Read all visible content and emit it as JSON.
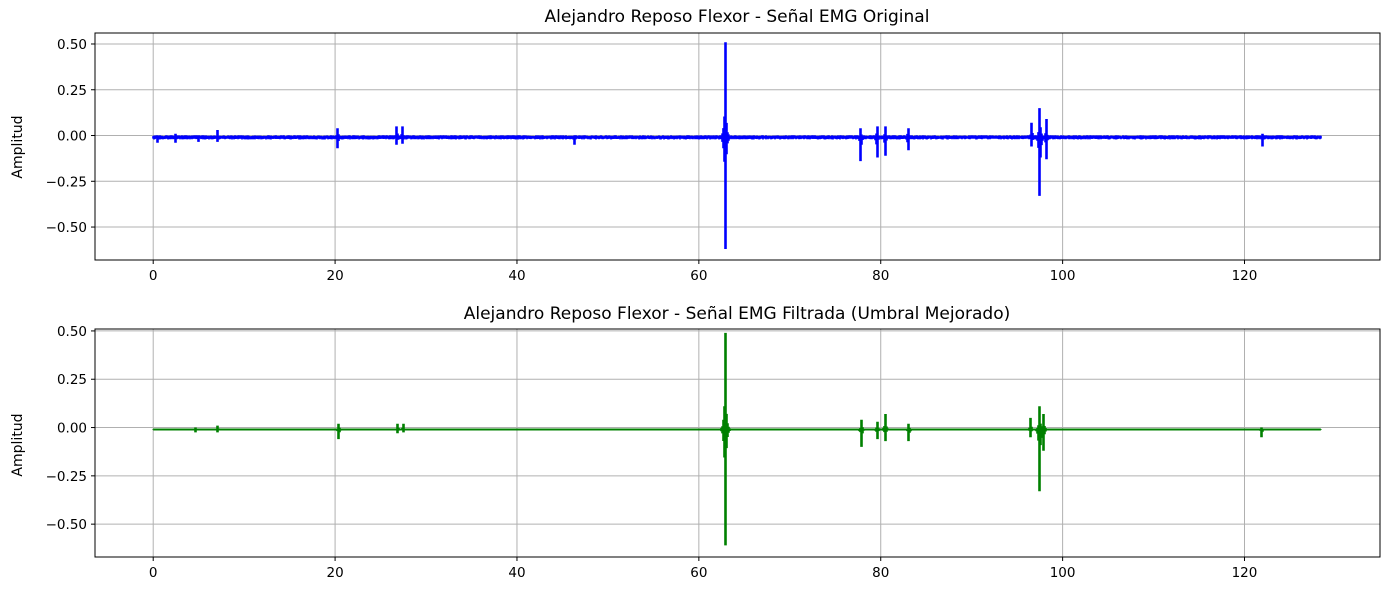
{
  "chart_data": [
    {
      "type": "line",
      "title": "Alejandro Reposo Flexor - Señal EMG Original",
      "xlabel": "",
      "ylabel": "Amplitud",
      "xlim": [
        -6.4,
        134.9
      ],
      "ylim": [
        -0.68,
        0.56
      ],
      "xticks": [
        0,
        20,
        40,
        60,
        80,
        100,
        120
      ],
      "yticks": [
        0.5,
        0.25,
        0,
        -0.25,
        -0.5
      ],
      "xtick_labels": [
        "0",
        "20",
        "40",
        "60",
        "80",
        "100",
        "120"
      ],
      "ytick_labels": [
        "0.50",
        "0.25",
        "0.00",
        "−0.25",
        "−0.50"
      ],
      "grid": true,
      "color": "#0000ff",
      "signal": {
        "x_range": [
          0,
          128.4
        ],
        "baseline": -0.01,
        "noise_amplitude": 0.012,
        "peaks": [
          {
            "x": 0.5,
            "max": 0.0,
            "min": -0.04
          },
          {
            "x": 2.5,
            "max": 0.01,
            "min": -0.04
          },
          {
            "x": 5.0,
            "max": 0.0,
            "min": -0.035
          },
          {
            "x": 7.1,
            "max": 0.03,
            "min": -0.035
          },
          {
            "x": 20.3,
            "max": 0.04,
            "min": -0.07
          },
          {
            "x": 26.8,
            "max": 0.05,
            "min": -0.05
          },
          {
            "x": 27.4,
            "max": 0.05,
            "min": -0.045
          },
          {
            "x": 46.3,
            "max": 0.0,
            "min": -0.05
          },
          {
            "x": 62.9,
            "max": 0.51,
            "min": -0.62
          },
          {
            "x": 77.8,
            "max": 0.04,
            "min": -0.14
          },
          {
            "x": 79.6,
            "max": 0.05,
            "min": -0.12
          },
          {
            "x": 80.5,
            "max": 0.05,
            "min": -0.11
          },
          {
            "x": 83.0,
            "max": 0.04,
            "min": -0.08
          },
          {
            "x": 96.6,
            "max": 0.07,
            "min": -0.06
          },
          {
            "x": 97.5,
            "max": 0.15,
            "min": -0.33
          },
          {
            "x": 98.2,
            "max": 0.09,
            "min": -0.13
          },
          {
            "x": 122.0,
            "max": 0.01,
            "min": -0.06
          }
        ]
      }
    },
    {
      "type": "line",
      "title": "Alejandro Reposo Flexor - Señal EMG Filtrada (Umbral Mejorado)",
      "xlabel": "",
      "ylabel": "Amplitud",
      "xlim": [
        -6.4,
        134.9
      ],
      "ylim": [
        -0.67,
        0.51
      ],
      "xticks": [
        0,
        20,
        40,
        60,
        80,
        100,
        120
      ],
      "yticks": [
        0.5,
        0.25,
        0,
        -0.25,
        -0.5
      ],
      "xtick_labels": [
        "0",
        "20",
        "40",
        "60",
        "80",
        "100",
        "120"
      ],
      "ytick_labels": [
        "0.50",
        "0.25",
        "0.00",
        "−0.25",
        "−0.50"
      ],
      "grid": true,
      "color": "#008000",
      "signal": {
        "x_range": [
          0,
          128.4
        ],
        "baseline": -0.01,
        "noise_amplitude": 0.002,
        "peaks": [
          {
            "x": 4.6,
            "max": 0.0,
            "min": -0.025
          },
          {
            "x": 7.1,
            "max": 0.01,
            "min": -0.025
          },
          {
            "x": 20.4,
            "max": 0.02,
            "min": -0.06
          },
          {
            "x": 26.9,
            "max": 0.02,
            "min": -0.03
          },
          {
            "x": 27.5,
            "max": 0.02,
            "min": -0.025
          },
          {
            "x": 62.9,
            "max": 0.49,
            "min": -0.61
          },
          {
            "x": 77.9,
            "max": 0.04,
            "min": -0.1
          },
          {
            "x": 79.6,
            "max": 0.03,
            "min": -0.06
          },
          {
            "x": 80.5,
            "max": 0.07,
            "min": -0.07
          },
          {
            "x": 83.1,
            "max": 0.02,
            "min": -0.07
          },
          {
            "x": 96.5,
            "max": 0.05,
            "min": -0.05
          },
          {
            "x": 97.5,
            "max": 0.11,
            "min": -0.33
          },
          {
            "x": 97.9,
            "max": 0.07,
            "min": -0.12
          },
          {
            "x": 121.9,
            "max": 0.0,
            "min": -0.05
          }
        ]
      }
    }
  ]
}
